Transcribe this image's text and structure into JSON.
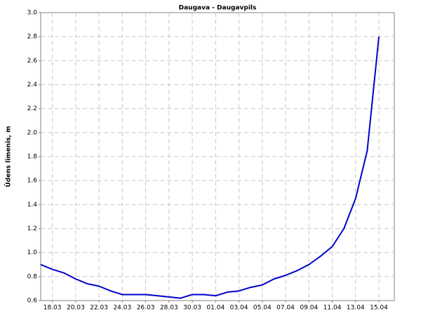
{
  "chart_data": {
    "type": "line",
    "title": "Daugava - Daugavpils",
    "y_label": "Ūdens līmenis, m",
    "categories": [
      null,
      "18.03",
      null,
      "20.03",
      null,
      "22.03",
      null,
      "24.03",
      null,
      "26.03",
      null,
      "28.03",
      null,
      "30.03",
      null,
      "01.04",
      null,
      "03.04",
      null,
      "05.04",
      null,
      "07.04",
      null,
      "09.04",
      null,
      "11.04",
      null,
      "13.04",
      null,
      "15.04"
    ],
    "series": [
      {
        "name": "Daugavpils",
        "color": "#0000cc",
        "values": [
          0.9,
          0.86,
          0.83,
          0.78,
          0.74,
          0.72,
          0.68,
          0.65,
          0.65,
          0.65,
          0.64,
          0.63,
          0.62,
          0.65,
          0.65,
          0.64,
          0.67,
          0.68,
          0.71,
          0.73,
          0.78,
          0.81,
          0.85,
          0.9,
          0.97,
          1.05,
          1.2,
          1.45,
          1.85,
          2.8
        ]
      }
    ],
    "ylim": [
      0.6,
      3.0
    ],
    "yticks": [
      0.6,
      0.8,
      {
        "value": 1,
        "label": "1.0"
      },
      1.2,
      1.4,
      1.6,
      1.8,
      {
        "value": 2,
        "label": "2.0"
      },
      2.2,
      2.4,
      2.6,
      2.8,
      {
        "value": 3,
        "label": "3.0"
      }
    ],
    "grid": true
  }
}
